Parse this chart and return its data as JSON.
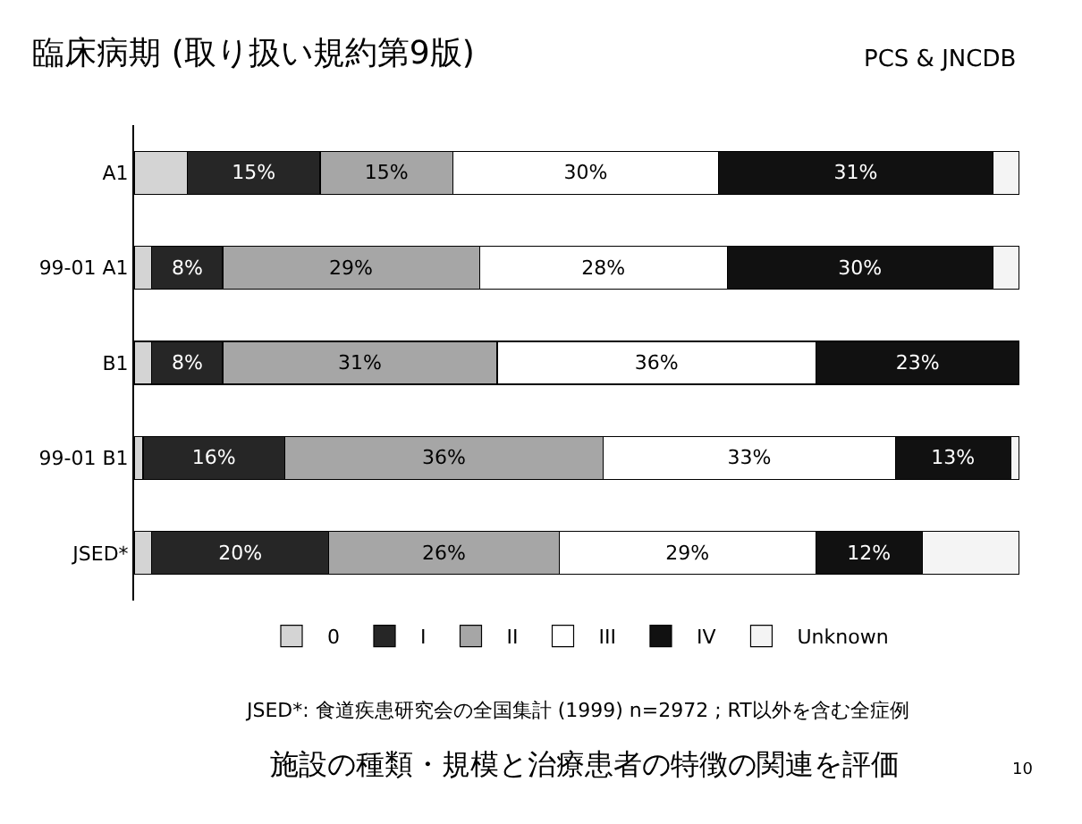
{
  "chart_data": {
    "type": "bar",
    "orientation": "horizontal",
    "stacked": true,
    "title": "臨床病期 (取り扱い規約第9版)",
    "subtitle": "PCS & JNCDB",
    "categories": [
      "A1",
      "99-01 A1",
      "B1",
      "99-01 B1",
      "JSED*"
    ],
    "xlim": [
      0,
      100
    ],
    "series": [
      {
        "name": "0",
        "color": "#d4d4d4",
        "values": [
          6,
          2,
          2,
          1,
          2
        ],
        "value_labels": [
          null,
          null,
          null,
          null,
          null
        ]
      },
      {
        "name": "I",
        "color": "#262626",
        "values": [
          15,
          8,
          8,
          16,
          20
        ],
        "value_labels": [
          "15%",
          "8%",
          "8%",
          "16%",
          "20%"
        ]
      },
      {
        "name": "II",
        "color": "#a6a6a6",
        "values": [
          15,
          29,
          31,
          36,
          26
        ],
        "value_labels": [
          "15%",
          "29%",
          "31%",
          "36%",
          "26%"
        ]
      },
      {
        "name": "III",
        "color": "#ffffff",
        "values": [
          30,
          28,
          36,
          33,
          29
        ],
        "value_labels": [
          "30%",
          "28%",
          "36%",
          "33%",
          "29%"
        ]
      },
      {
        "name": "IV",
        "color": "#111111",
        "values": [
          31,
          30,
          23,
          13,
          12
        ],
        "value_labels": [
          "31%",
          "30%",
          "23%",
          "13%",
          "12%"
        ]
      },
      {
        "name": "Unknown",
        "color": "#f4f4f4",
        "values": [
          3,
          3,
          0,
          1,
          11
        ],
        "value_labels": [
          null,
          null,
          null,
          null,
          null
        ]
      }
    ],
    "legend": "bottom",
    "grid": false,
    "annotations": [
      "JSED*: 食道疾患研究会の全国集計 (1999) n=2972 ; RT以外を含む全症例",
      "施設の種類・規模と治療患者の特徴の関連を評価",
      "10"
    ]
  }
}
